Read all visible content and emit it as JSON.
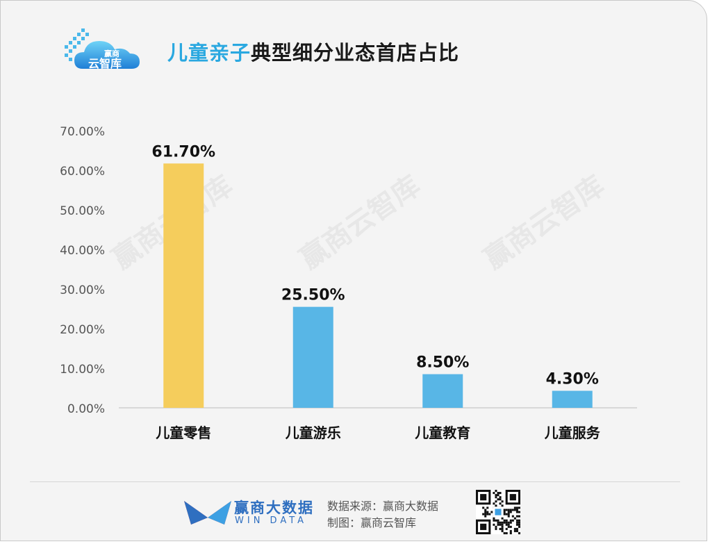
{
  "header": {
    "title_accent": "儿童亲子",
    "title_rest": "典型细分业态首店占比",
    "logo_text_top": "赢商",
    "logo_text_bottom": "云智库"
  },
  "watermark": "赢商云智库",
  "chart_data": {
    "type": "bar",
    "categories": [
      "儿童零售",
      "儿童游乐",
      "儿童教育",
      "儿童服务"
    ],
    "values": [
      61.7,
      25.5,
      8.5,
      4.3
    ],
    "value_labels": [
      "61.70%",
      "25.50%",
      "8.50%",
      "4.30%"
    ],
    "ylim": [
      0,
      70
    ],
    "ytick_values": [
      0,
      10,
      20,
      30,
      40,
      50,
      60,
      70
    ],
    "ytick_labels": [
      "0.00%",
      "10.00%",
      "20.00%",
      "30.00%",
      "40.00%",
      "50.00%",
      "60.00%",
      "70.00%"
    ],
    "bar_colors": [
      "#f5cd5c",
      "#58b6e6",
      "#58b6e6",
      "#58b6e6"
    ],
    "grid": false,
    "title": "",
    "xlabel": "",
    "ylabel": ""
  },
  "footer": {
    "brand_cn": "赢商大数据",
    "brand_en": "WIN DATA",
    "source_line": "数据来源：赢商大数据",
    "maker_line": "制图：赢商云智库"
  }
}
